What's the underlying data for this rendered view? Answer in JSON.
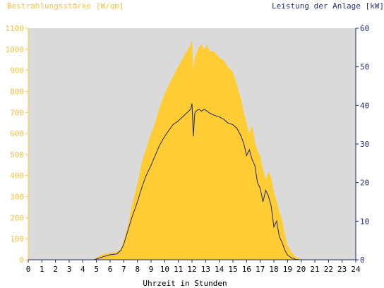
{
  "colors": {
    "background": "#ffffff",
    "plot_background": "#dadada",
    "irradiance": "#ffcc33",
    "irradiance_text": "#f5c044",
    "power": "#1f2a6b",
    "power_text": "#2a2f7a",
    "axis_text": "#000000"
  },
  "chart_data": {
    "type": "area",
    "left_axis_label": "Bestrahlungsstärke [W/qm]",
    "right_axis_label": "Leistung der Anlage [kW]",
    "xlabel": "Uhrzeit in Stunden",
    "xlim": [
      0,
      24
    ],
    "ylim_left": [
      0,
      1100
    ],
    "ylim_right": [
      0,
      60
    ],
    "x_ticks": [
      "0",
      "1",
      "2",
      "3",
      "4",
      "5",
      "6",
      "7",
      "8",
      "9",
      "10",
      "11",
      "12",
      "13",
      "14",
      "15",
      "16",
      "17",
      "18",
      "19",
      "20",
      "21",
      "22",
      "23",
      "24"
    ],
    "y_ticks_left": [
      "0",
      "100",
      "200",
      "300",
      "400",
      "500",
      "600",
      "700",
      "800",
      "900",
      "1000",
      "1100"
    ],
    "y_ticks_right": [
      "0",
      "10",
      "20",
      "30",
      "40",
      "50",
      "60"
    ],
    "grid": false,
    "series": [
      {
        "name": "Bestrahlungsstärke [W/qm]",
        "axis": "left",
        "style": "area",
        "x": [
          0,
          4.7,
          5.0,
          5.5,
          6.0,
          6.5,
          6.8,
          7.0,
          7.3,
          7.6,
          8.0,
          8.3,
          8.6,
          9.0,
          9.3,
          9.6,
          10.0,
          10.3,
          10.6,
          11.0,
          11.3,
          11.6,
          11.9,
          12.0,
          12.1,
          12.2,
          12.3,
          12.5,
          12.7,
          12.9,
          13.1,
          13.3,
          13.6,
          14.0,
          14.3,
          14.6,
          15.0,
          15.3,
          15.6,
          15.8,
          16.0,
          16.2,
          16.4,
          16.6,
          16.8,
          17.0,
          17.2,
          17.4,
          17.6,
          17.8,
          18.0,
          18.2,
          18.4,
          18.6,
          18.8,
          19.0,
          19.3,
          19.6,
          19.9,
          20.2,
          20.5,
          24
        ],
        "y": [
          0,
          0,
          10,
          28,
          33,
          38,
          55,
          95,
          160,
          260,
          360,
          460,
          520,
          600,
          650,
          720,
          790,
          830,
          870,
          920,
          955,
          990,
          1020,
          1050,
          900,
          960,
          980,
          1010,
          1025,
          1000,
          1020,
          990,
          990,
          960,
          950,
          920,
          890,
          830,
          760,
          700,
          650,
          600,
          640,
          560,
          520,
          490,
          430,
          380,
          420,
          390,
          320,
          280,
          230,
          190,
          120,
          70,
          35,
          15,
          5,
          0,
          0,
          0
        ]
      },
      {
        "name": "Leistung der Anlage [kW]",
        "axis": "right",
        "style": "line",
        "x": [
          0,
          4.8,
          5.0,
          5.5,
          6.0,
          6.5,
          6.8,
          7.0,
          7.3,
          7.6,
          8.0,
          8.3,
          8.6,
          9.0,
          9.3,
          9.6,
          10.0,
          10.3,
          10.6,
          11.0,
          11.3,
          11.6,
          11.9,
          12.0,
          12.1,
          12.2,
          12.3,
          12.5,
          12.7,
          12.9,
          13.1,
          13.3,
          13.6,
          14.0,
          14.3,
          14.6,
          15.0,
          15.3,
          15.6,
          15.8,
          16.0,
          16.2,
          16.4,
          16.6,
          16.8,
          17.0,
          17.2,
          17.4,
          17.6,
          17.8,
          18.0,
          18.2,
          18.4,
          18.6,
          18.8,
          19.0,
          19.3,
          19.6,
          19.9,
          20.2,
          24
        ],
        "y": [
          0,
          0,
          0.2,
          0.8,
          1.3,
          1.5,
          2.5,
          4,
          7.5,
          11,
          15,
          18.5,
          21.5,
          24.5,
          27,
          29.5,
          32,
          33.5,
          35,
          36,
          37,
          38,
          39,
          40.5,
          32,
          38,
          38.5,
          39,
          38.5,
          39,
          38.5,
          38,
          37.5,
          37,
          36.5,
          35.5,
          35,
          34,
          32,
          30,
          27,
          28.5,
          26,
          24.5,
          20,
          18.5,
          15,
          18,
          16.5,
          14,
          8.5,
          10,
          6,
          4.5,
          2.5,
          1.2,
          0.5,
          0.1,
          0,
          0,
          0
        ]
      }
    ]
  }
}
